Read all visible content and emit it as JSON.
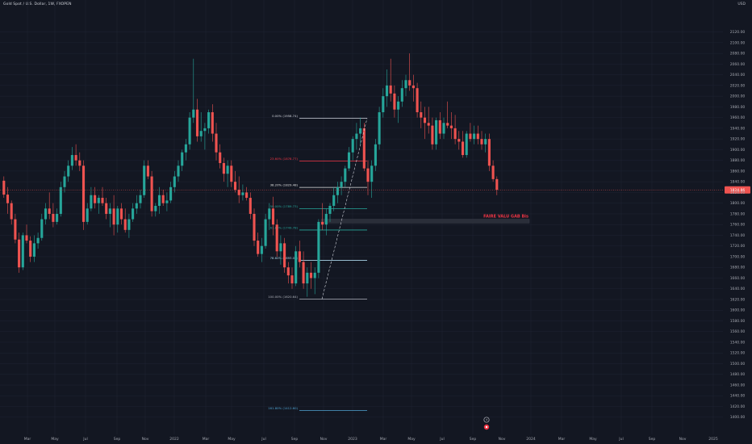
{
  "header": {
    "symbol_title": "Gold Spot / U.S. Dollar, 1W, FXOPEN",
    "currency": "USD"
  },
  "colors": {
    "background": "#131722",
    "bull": "#26a69a",
    "bear": "#ef5350",
    "grid": "#1f2433",
    "axis_text": "#a3a6af"
  },
  "chart_data": {
    "type": "candlestick",
    "title": "Gold Spot / U.S. Dollar, 1W, FXOPEN",
    "y_unit": "USD",
    "ylim": [
      1380,
      2130
    ],
    "y_ticks": [
      1400,
      1420,
      1440,
      1460,
      1480,
      1500,
      1520,
      1540,
      1560,
      1580,
      1600,
      1620,
      1640,
      1660,
      1680,
      1700,
      1720,
      1740,
      1760,
      1780,
      1800,
      1820,
      1840,
      1860,
      1880,
      1900,
      1920,
      1940,
      1960,
      1980,
      2000,
      2020,
      2040,
      2060,
      2080,
      2100,
      2120
    ],
    "x_ticks": [
      "Mar",
      "May",
      "Jul",
      "Sep",
      "Nov",
      "2022",
      "Mar",
      "May",
      "Jul",
      "Sep",
      "Nov",
      "2023",
      "Mar",
      "May",
      "Jul",
      "Sep",
      "Nov",
      "2024",
      "Mar",
      "May",
      "Jul",
      "Sep",
      "Nov",
      "2025"
    ],
    "last_price": {
      "label": "1824.86",
      "value": 1824.86
    },
    "candles": [
      [
        1842,
        1850,
        1810,
        1816
      ],
      [
        1816,
        1830,
        1780,
        1800
      ],
      [
        1800,
        1805,
        1760,
        1770
      ],
      [
        1770,
        1780,
        1725,
        1732
      ],
      [
        1732,
        1745,
        1670,
        1680
      ],
      [
        1680,
        1745,
        1675,
        1740
      ],
      [
        1740,
        1760,
        1725,
        1730
      ],
      [
        1730,
        1738,
        1690,
        1700
      ],
      [
        1700,
        1740,
        1690,
        1725
      ],
      [
        1725,
        1745,
        1715,
        1735
      ],
      [
        1735,
        1780,
        1730,
        1770
      ],
      [
        1770,
        1800,
        1760,
        1790
      ],
      [
        1790,
        1820,
        1770,
        1780
      ],
      [
        1780,
        1800,
        1755,
        1765
      ],
      [
        1765,
        1790,
        1760,
        1780
      ],
      [
        1780,
        1840,
        1775,
        1830
      ],
      [
        1830,
        1860,
        1820,
        1850
      ],
      [
        1850,
        1880,
        1840,
        1870
      ],
      [
        1870,
        1905,
        1862,
        1890
      ],
      [
        1890,
        1910,
        1870,
        1880
      ],
      [
        1880,
        1895,
        1860,
        1870
      ],
      [
        1870,
        1880,
        1750,
        1765
      ],
      [
        1765,
        1800,
        1760,
        1790
      ],
      [
        1790,
        1830,
        1785,
        1815
      ],
      [
        1815,
        1830,
        1790,
        1800
      ],
      [
        1800,
        1815,
        1780,
        1810
      ],
      [
        1810,
        1830,
        1795,
        1800
      ],
      [
        1800,
        1810,
        1770,
        1780
      ],
      [
        1780,
        1800,
        1755,
        1790
      ],
      [
        1790,
        1815,
        1740,
        1760
      ],
      [
        1760,
        1795,
        1745,
        1790
      ],
      [
        1790,
        1800,
        1760,
        1770
      ],
      [
        1770,
        1790,
        1745,
        1750
      ],
      [
        1750,
        1780,
        1735,
        1770
      ],
      [
        1770,
        1800,
        1765,
        1790
      ],
      [
        1790,
        1815,
        1780,
        1800
      ],
      [
        1800,
        1825,
        1790,
        1815
      ],
      [
        1815,
        1880,
        1810,
        1870
      ],
      [
        1870,
        1880,
        1845,
        1850
      ],
      [
        1850,
        1860,
        1775,
        1785
      ],
      [
        1785,
        1800,
        1775,
        1795
      ],
      [
        1795,
        1830,
        1780,
        1815
      ],
      [
        1815,
        1825,
        1795,
        1800
      ],
      [
        1800,
        1820,
        1785,
        1805
      ],
      [
        1805,
        1840,
        1800,
        1830
      ],
      [
        1830,
        1860,
        1820,
        1850
      ],
      [
        1850,
        1880,
        1840,
        1870
      ],
      [
        1870,
        1900,
        1860,
        1895
      ],
      [
        1895,
        1920,
        1880,
        1910
      ],
      [
        1910,
        1970,
        1900,
        1960
      ],
      [
        1960,
        2070,
        1950,
        1975
      ],
      [
        1975,
        1995,
        1915,
        1925
      ],
      [
        1925,
        1970,
        1915,
        1935
      ],
      [
        1935,
        1950,
        1900,
        1940
      ],
      [
        1940,
        1975,
        1930,
        1970
      ],
      [
        1970,
        1985,
        1915,
        1930
      ],
      [
        1930,
        1950,
        1880,
        1895
      ],
      [
        1895,
        1910,
        1865,
        1875
      ],
      [
        1875,
        1885,
        1840,
        1855
      ],
      [
        1855,
        1880,
        1830,
        1870
      ],
      [
        1870,
        1880,
        1830,
        1840
      ],
      [
        1840,
        1860,
        1820,
        1825
      ],
      [
        1825,
        1850,
        1800,
        1815
      ],
      [
        1815,
        1835,
        1805,
        1820
      ],
      [
        1820,
        1830,
        1805,
        1810
      ],
      [
        1810,
        1820,
        1770,
        1780
      ],
      [
        1780,
        1790,
        1720,
        1730
      ],
      [
        1730,
        1745,
        1700,
        1705
      ],
      [
        1705,
        1735,
        1690,
        1720
      ],
      [
        1720,
        1780,
        1715,
        1770
      ],
      [
        1770,
        1800,
        1750,
        1790
      ],
      [
        1790,
        1812,
        1740,
        1760
      ],
      [
        1760,
        1770,
        1700,
        1710
      ],
      [
        1710,
        1740,
        1685,
        1725
      ],
      [
        1725,
        1735,
        1670,
        1680
      ],
      [
        1680,
        1690,
        1650,
        1665
      ],
      [
        1665,
        1680,
        1640,
        1650
      ],
      [
        1650,
        1720,
        1645,
        1710
      ],
      [
        1710,
        1730,
        1680,
        1690
      ],
      [
        1690,
        1710,
        1640,
        1650
      ],
      [
        1650,
        1680,
        1625,
        1670
      ],
      [
        1670,
        1690,
        1640,
        1660
      ],
      [
        1660,
        1680,
        1630,
        1670
      ],
      [
        1670,
        1770,
        1660,
        1765
      ],
      [
        1765,
        1800,
        1750,
        1760
      ],
      [
        1760,
        1790,
        1740,
        1780
      ],
      [
        1780,
        1800,
        1765,
        1795
      ],
      [
        1795,
        1830,
        1785,
        1815
      ],
      [
        1815,
        1840,
        1800,
        1830
      ],
      [
        1830,
        1850,
        1815,
        1840
      ],
      [
        1840,
        1870,
        1830,
        1865
      ],
      [
        1865,
        1905,
        1860,
        1895
      ],
      [
        1895,
        1925,
        1880,
        1920
      ],
      [
        1920,
        1950,
        1900,
        1930
      ],
      [
        1930,
        1960,
        1910,
        1940
      ],
      [
        1940,
        1950,
        1860,
        1865
      ],
      [
        1865,
        1880,
        1815,
        1840
      ],
      [
        1840,
        1880,
        1810,
        1870
      ],
      [
        1870,
        1920,
        1860,
        1910
      ],
      [
        1910,
        1980,
        1900,
        1970
      ],
      [
        1970,
        2015,
        1960,
        2000
      ],
      [
        2000,
        2050,
        1980,
        2020
      ],
      [
        2020,
        2070,
        1990,
        2005
      ],
      [
        2005,
        2020,
        1960,
        1975
      ],
      [
        1975,
        2000,
        1950,
        1990
      ],
      [
        1990,
        2030,
        1980,
        2015
      ],
      [
        2015,
        2040,
        2000,
        2030
      ],
      [
        2030,
        2080,
        2010,
        2020
      ],
      [
        2020,
        2040,
        1990,
        2015
      ],
      [
        2015,
        2025,
        1960,
        1970
      ],
      [
        1970,
        1990,
        1940,
        1960
      ],
      [
        1960,
        1980,
        1920,
        1950
      ],
      [
        1950,
        1980,
        1930,
        1945
      ],
      [
        1945,
        1960,
        1900,
        1910
      ],
      [
        1910,
        1960,
        1900,
        1955
      ],
      [
        1955,
        1970,
        1920,
        1930
      ],
      [
        1930,
        1960,
        1920,
        1950
      ],
      [
        1950,
        1990,
        1940,
        1945
      ],
      [
        1945,
        1970,
        1920,
        1940
      ],
      [
        1940,
        1965,
        1910,
        1920
      ],
      [
        1920,
        1935,
        1900,
        1915
      ],
      [
        1915,
        1935,
        1885,
        1890
      ],
      [
        1890,
        1935,
        1885,
        1930
      ],
      [
        1930,
        1950,
        1915,
        1920
      ],
      [
        1920,
        1945,
        1910,
        1930
      ],
      [
        1930,
        1945,
        1910,
        1920
      ],
      [
        1920,
        1935,
        1900,
        1910
      ],
      [
        1910,
        1930,
        1895,
        1920
      ],
      [
        1920,
        1930,
        1860,
        1870
      ],
      [
        1870,
        1880,
        1840,
        1845
      ],
      [
        1845,
        1850,
        1815,
        1825
      ]
    ],
    "fibonacci": [
      {
        "level": "0.00%",
        "price": 1958.74,
        "label": "0.00% (1958.74)",
        "color": "#d1d4dc"
      },
      {
        "level": "23.60%",
        "price": 1878.77,
        "label": "23.60% (1878.77)",
        "color": "#f23645"
      },
      {
        "level": "38.20%",
        "price": 1829.48,
        "label": "38.20% (1829.48)",
        "color": "#e0e0e0"
      },
      {
        "level": "50.00%",
        "price": 1789.73,
        "label": "50.00% (1789.73)",
        "color": "#26a69a"
      },
      {
        "level": "61.80%",
        "price": 1749.78,
        "label": "61.80% (1749.78)",
        "color": "#26a69a"
      },
      {
        "level": "78.60%",
        "price": 1693.0,
        "label": "78.60% (1693.00)",
        "color": "#aad4e8"
      },
      {
        "level": "100.00%",
        "price": 1620.64,
        "label": "100.00% (1620.64)",
        "color": "#b2b5be"
      },
      {
        "level": "161.80%",
        "price": 1412.6,
        "label": "161.80% (1412.60)",
        "color": "#4fa3d1"
      }
    ],
    "fvg_zone": {
      "label": "FAIRE VALU GAB Bis",
      "top": 1770,
      "bottom": 1763
    }
  }
}
